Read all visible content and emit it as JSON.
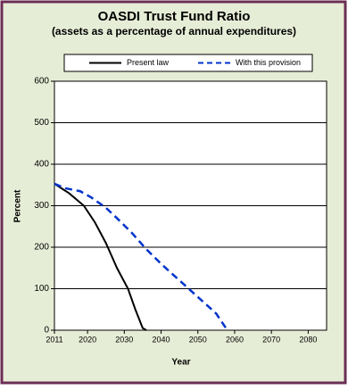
{
  "chart_data": {
    "type": "line",
    "title": "OASDI Trust Fund Ratio",
    "subtitle": "(assets as a percentage of annual expenditures)",
    "x_label": "Year",
    "y_label": "Percent",
    "xlim": [
      2011,
      2085
    ],
    "xticks": [
      2011,
      2020,
      2030,
      2040,
      2050,
      2060,
      2070,
      2080
    ],
    "ylim": [
      0,
      600
    ],
    "yticks": [
      0,
      100,
      200,
      300,
      400,
      500,
      600
    ],
    "grid": true,
    "legend": "top",
    "series": [
      {
        "name": "Present law",
        "color": "#000000",
        "dash": false,
        "x": [
          2011,
          2015,
          2019,
          2022,
          2025,
          2028,
          2031,
          2033,
          2035,
          2036
        ],
        "values": [
          353,
          330,
          300,
          260,
          210,
          150,
          100,
          50,
          5,
          0
        ]
      },
      {
        "name": "With this provision",
        "color": "#0033cc",
        "dash": true,
        "x": [
          2011,
          2014,
          2018,
          2021,
          2025,
          2028,
          2032,
          2036,
          2040,
          2045,
          2050,
          2055,
          2058
        ],
        "values": [
          353,
          342,
          335,
          320,
          295,
          270,
          235,
          195,
          160,
          120,
          80,
          40,
          0
        ]
      }
    ]
  }
}
